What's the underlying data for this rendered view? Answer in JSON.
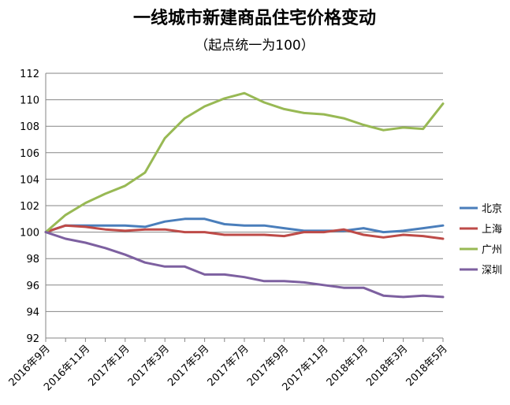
{
  "chart_data": {
    "type": "line",
    "title": "一线城市新建商品住宅价格变动",
    "subtitle": "（起点统一为100）",
    "x": [
      "2016年9月",
      "2016年10月",
      "2016年11月",
      "2016年12月",
      "2017年1月",
      "2017年2月",
      "2017年3月",
      "2017年4月",
      "2017年5月",
      "2017年6月",
      "2017年7月",
      "2017年8月",
      "2017年9月",
      "2017年10月",
      "2017年11月",
      "2017年12月",
      "2018年1月",
      "2018年2月",
      "2018年3月",
      "2018年4月",
      "2018年5月"
    ],
    "xtick_labels": [
      "2016年9月",
      "2016年11月",
      "2017年1月",
      "2017年3月",
      "2017年5月",
      "2017年7月",
      "2017年9月",
      "2017年11月",
      "2018年1月",
      "2018年3月",
      "2018年5月"
    ],
    "ylim": [
      92,
      112
    ],
    "yticks": [
      92,
      94,
      96,
      98,
      100,
      102,
      104,
      106,
      108,
      110,
      112
    ],
    "grid": true,
    "legend_position": "right",
    "series": [
      {
        "name": "北京",
        "color": "#4a7ebb",
        "values": [
          100,
          100.5,
          100.5,
          100.5,
          100.5,
          100.4,
          100.8,
          101.0,
          101.0,
          100.6,
          100.5,
          100.5,
          100.3,
          100.1,
          100.1,
          100.1,
          100.3,
          100.0,
          100.1,
          100.3,
          100.5
        ]
      },
      {
        "name": "上海",
        "color": "#be4b48",
        "values": [
          100,
          100.5,
          100.4,
          100.2,
          100.1,
          100.2,
          100.2,
          100.0,
          100.0,
          99.8,
          99.8,
          99.8,
          99.7,
          100.0,
          100.0,
          100.2,
          99.8,
          99.6,
          99.8,
          99.7,
          99.5
        ]
      },
      {
        "name": "广州",
        "color": "#98b954",
        "values": [
          100,
          101.3,
          102.2,
          102.9,
          103.5,
          104.5,
          107.1,
          108.6,
          109.5,
          110.1,
          110.5,
          109.8,
          109.3,
          109.0,
          108.9,
          108.6,
          108.1,
          107.7,
          107.9,
          107.8,
          109.7
        ]
      },
      {
        "name": "深圳",
        "color": "#7d60a0",
        "values": [
          100,
          99.5,
          99.2,
          98.8,
          98.3,
          97.7,
          97.4,
          97.4,
          96.8,
          96.8,
          96.6,
          96.3,
          96.3,
          96.2,
          96.0,
          95.8,
          95.8,
          95.2,
          95.1,
          95.2,
          95.1
        ]
      }
    ]
  }
}
